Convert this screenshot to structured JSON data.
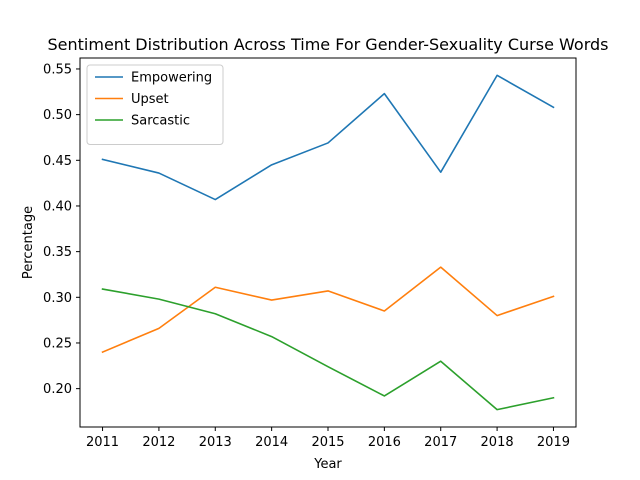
{
  "chart_data": {
    "type": "line",
    "title": "Sentiment Distribution Across Time For Gender-Sexuality Curse Words",
    "xlabel": "Year",
    "ylabel": "Percentage",
    "x": [
      2011,
      2012,
      2013,
      2014,
      2015,
      2016,
      2017,
      2018,
      2019
    ],
    "x_ticks": [
      "2011",
      "2012",
      "2013",
      "2014",
      "2015",
      "2016",
      "2017",
      "2018",
      "2019"
    ],
    "y_ticks": [
      "0.20",
      "0.25",
      "0.30",
      "0.35",
      "0.40",
      "0.45",
      "0.50",
      "0.55"
    ],
    "ylim": [
      0.158,
      0.562
    ],
    "grid": false,
    "legend_position": "upper-left",
    "series": [
      {
        "name": "Empowering",
        "color": "#1f77b4",
        "values": [
          0.451,
          0.436,
          0.407,
          0.445,
          0.469,
          0.523,
          0.437,
          0.543,
          0.508
        ]
      },
      {
        "name": "Upset",
        "color": "#ff7f0e",
        "values": [
          0.24,
          0.266,
          0.311,
          0.297,
          0.307,
          0.285,
          0.333,
          0.28,
          0.301
        ]
      },
      {
        "name": "Sarcastic",
        "color": "#2ca02c",
        "values": [
          0.309,
          0.298,
          0.282,
          0.257,
          0.224,
          0.192,
          0.23,
          0.177,
          0.19
        ]
      }
    ]
  }
}
